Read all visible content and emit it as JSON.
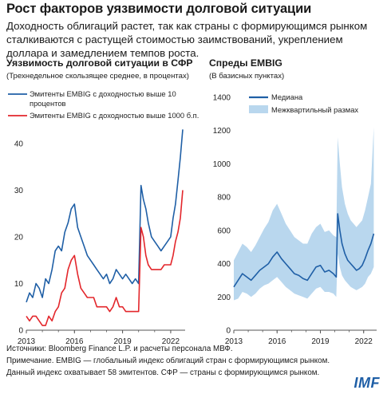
{
  "title": "Рост факторов уязвимости долговой ситуации",
  "subtitle": "Доходность облигаций растет, так как страны с формирующимся рынком сталкиваются с растущей стоимостью заимствований, укреплением доллара и замедлением темпов роста.",
  "footer": {
    "source": "Источники: Bloomberg Finance L.P. и расчеты персонала МВФ.",
    "note1": "Примечание. EMBIG — глобальный индекс облигаций стран с формирующимся рынком.",
    "note2": "Данный индекс охватывает 58 эмитентов. СФР — страны с формирующимся рынком."
  },
  "logo": "IMF",
  "colors": {
    "blue": "#1f5fa6",
    "red": "#e3262b",
    "band": "#b9d7ee",
    "axis": "#555555"
  },
  "chart_data": [
    {
      "type": "line",
      "title": "Уязвимость долговой ситуации в СФР",
      "subtitle": "(Трехнедельное скользящее среднее, в процентах)",
      "xlim": [
        2013,
        2022.9
      ],
      "ylim": [
        0,
        48
      ],
      "yticks": [
        0,
        10,
        20,
        30,
        40
      ],
      "xticks": [
        "2013",
        "2016",
        "2019",
        "2022"
      ],
      "legend_position": "top-left",
      "series": [
        {
          "name": "Эмитенты EMBIG с доходностью выше 10 процентов",
          "color": "#1f5fa6",
          "x": [
            2013.0,
            2013.2,
            2013.4,
            2013.6,
            2013.8,
            2014.0,
            2014.2,
            2014.4,
            2014.6,
            2014.8,
            2015.0,
            2015.2,
            2015.4,
            2015.6,
            2015.8,
            2016.0,
            2016.2,
            2016.4,
            2016.6,
            2016.8,
            2017.0,
            2017.2,
            2017.4,
            2017.6,
            2017.8,
            2018.0,
            2018.2,
            2018.4,
            2018.6,
            2018.8,
            2019.0,
            2019.2,
            2019.4,
            2019.6,
            2019.8,
            2020.0,
            2020.15,
            2020.3,
            2020.45,
            2020.6,
            2020.8,
            2021.0,
            2021.2,
            2021.4,
            2021.6,
            2021.8,
            2022.0,
            2022.15,
            2022.3,
            2022.45,
            2022.6,
            2022.75
          ],
          "y": [
            6,
            8,
            7,
            10,
            9,
            7,
            11,
            10,
            13,
            17,
            18,
            17,
            21,
            23,
            26,
            27,
            22,
            20,
            18,
            16,
            15,
            14,
            13,
            12,
            11,
            12,
            10,
            11,
            13,
            12,
            11,
            12,
            11,
            10,
            11,
            10,
            31,
            28,
            26,
            23,
            20,
            19,
            18,
            17,
            18,
            19,
            20,
            24,
            27,
            32,
            37,
            43
          ]
        },
        {
          "name": "Эмитенты EMBIG с доходностью выше 1000 б.п.",
          "color": "#e3262b",
          "x": [
            2013.0,
            2013.2,
            2013.4,
            2013.6,
            2013.8,
            2014.0,
            2014.2,
            2014.4,
            2014.6,
            2014.8,
            2015.0,
            2015.2,
            2015.4,
            2015.6,
            2015.8,
            2016.0,
            2016.2,
            2016.4,
            2016.6,
            2016.8,
            2017.0,
            2017.2,
            2017.4,
            2017.6,
            2017.8,
            2018.0,
            2018.2,
            2018.4,
            2018.6,
            2018.8,
            2019.0,
            2019.2,
            2019.4,
            2019.6,
            2019.8,
            2020.0,
            2020.15,
            2020.3,
            2020.45,
            2020.6,
            2020.8,
            2021.0,
            2021.2,
            2021.4,
            2021.6,
            2021.8,
            2022.0,
            2022.15,
            2022.3,
            2022.45,
            2022.6,
            2022.75
          ],
          "y": [
            3,
            2,
            3,
            3,
            2,
            1,
            1,
            3,
            2,
            4,
            5,
            8,
            9,
            13,
            15,
            16,
            12,
            9,
            8,
            7,
            7,
            7,
            5,
            5,
            5,
            5,
            4,
            5,
            7,
            5,
            5,
            4,
            4,
            4,
            4,
            4,
            22,
            20,
            16,
            14,
            13,
            13,
            13,
            13,
            14,
            14,
            14,
            16,
            19,
            21,
            24,
            30
          ]
        }
      ]
    },
    {
      "type": "line",
      "title": "Спреды EMBIG",
      "subtitle": "(В базисных пунктах)",
      "xlim": [
        2013,
        2022.9
      ],
      "ylim": [
        0,
        1400
      ],
      "yticks": [
        0,
        200,
        400,
        600,
        800,
        1000,
        1200,
        1400
      ],
      "xticks": [
        "2013",
        "2016",
        "2019",
        "2022"
      ],
      "legend_position": "top-left",
      "series": [
        {
          "name": "Медиана",
          "color": "#1f5fa6",
          "x": [
            2013.0,
            2013.3,
            2013.6,
            2013.9,
            2014.2,
            2014.5,
            2014.8,
            2015.1,
            2015.4,
            2015.7,
            2016.0,
            2016.3,
            2016.6,
            2016.9,
            2017.2,
            2017.5,
            2017.8,
            2018.1,
            2018.4,
            2018.7,
            2019.0,
            2019.3,
            2019.6,
            2019.9,
            2020.1,
            2020.2,
            2020.35,
            2020.5,
            2020.7,
            2020.9,
            2021.1,
            2021.3,
            2021.5,
            2021.7,
            2021.9,
            2022.1,
            2022.3,
            2022.5,
            2022.7
          ],
          "y": [
            260,
            300,
            340,
            320,
            300,
            330,
            360,
            380,
            400,
            440,
            470,
            430,
            400,
            370,
            340,
            330,
            310,
            300,
            340,
            380,
            390,
            350,
            360,
            340,
            320,
            700,
            600,
            520,
            460,
            420,
            400,
            380,
            360,
            370,
            390,
            430,
            480,
            520,
            580
          ]
        },
        {
          "name": "Межквартильный размах",
          "color": "#b9d7ee",
          "x": [
            2013.0,
            2013.3,
            2013.6,
            2013.9,
            2014.2,
            2014.5,
            2014.8,
            2015.1,
            2015.4,
            2015.7,
            2016.0,
            2016.3,
            2016.6,
            2016.9,
            2017.2,
            2017.5,
            2017.8,
            2018.1,
            2018.4,
            2018.7,
            2019.0,
            2019.3,
            2019.6,
            2019.9,
            2020.1,
            2020.2,
            2020.35,
            2020.5,
            2020.7,
            2020.9,
            2021.1,
            2021.3,
            2021.5,
            2021.7,
            2021.9,
            2022.1,
            2022.3,
            2022.5,
            2022.7
          ],
          "low": [
            180,
            190,
            230,
            220,
            200,
            220,
            250,
            270,
            280,
            300,
            320,
            290,
            260,
            240,
            220,
            210,
            200,
            190,
            220,
            250,
            260,
            230,
            230,
            220,
            200,
            460,
            380,
            330,
            300,
            280,
            260,
            250,
            240,
            250,
            260,
            280,
            320,
            340,
            380
          ],
          "high": [
            420,
            470,
            520,
            500,
            470,
            510,
            560,
            610,
            650,
            720,
            760,
            700,
            640,
            600,
            560,
            540,
            520,
            520,
            580,
            620,
            640,
            590,
            600,
            570,
            560,
            1160,
            1000,
            860,
            760,
            700,
            660,
            640,
            620,
            640,
            660,
            720,
            800,
            880,
            1220
          ]
        }
      ]
    }
  ]
}
